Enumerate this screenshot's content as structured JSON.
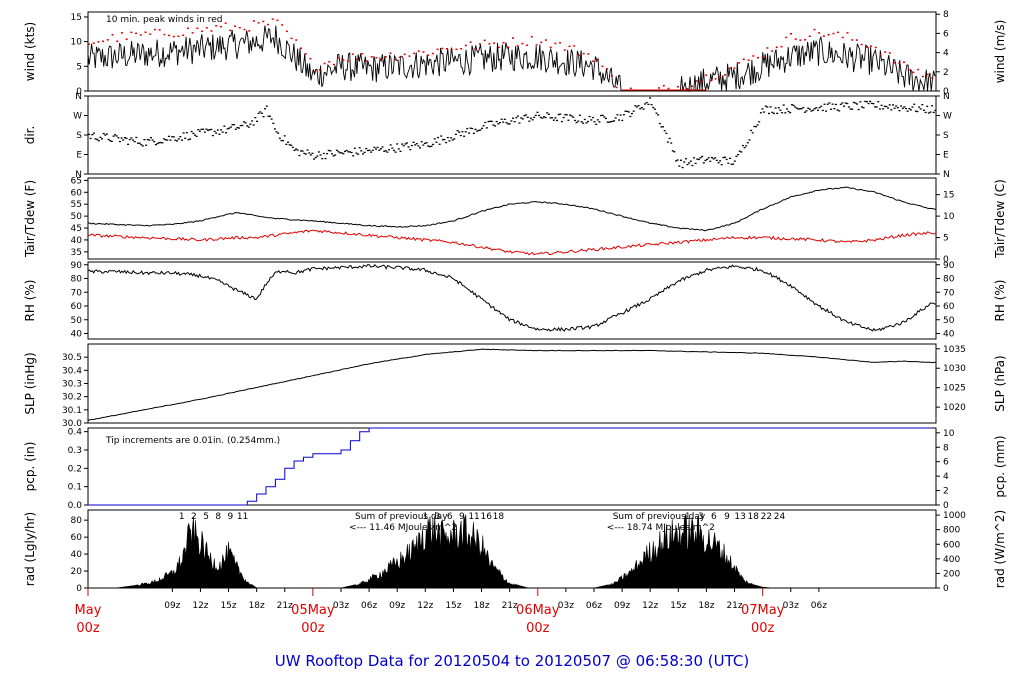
{
  "title": "UW Rooftop Data for 20120504  to  20120507 @ 06:58:30  (UTC)",
  "colors": {
    "red": "#e00000",
    "blue": "#0000d0",
    "purple": "#9900cc",
    "title": "#0000cc"
  },
  "x_axis": {
    "hour_ticks": [
      "09z",
      "12z",
      "15z",
      "18z",
      "21z",
      "03z",
      "06z",
      "09z",
      "12z",
      "15z",
      "18z",
      "21z",
      "03z",
      "06z",
      "09z",
      "12z",
      "15z",
      "18z",
      "21z",
      "03z",
      "06z"
    ],
    "day_labels": [
      {
        "line1": "May",
        "line2": "00z"
      },
      {
        "line1": "05May",
        "line2": "00z"
      },
      {
        "line1": "06May",
        "line2": "00z"
      },
      {
        "line1": "07May",
        "line2": "00z"
      }
    ]
  },
  "chart_data": [
    {
      "type": "line",
      "name": "wind",
      "ylabel": "wind (kts)",
      "ylabel_right": "wind (m/s)",
      "yticks": [
        0,
        5,
        10,
        15
      ],
      "yticks_right": [
        0,
        2,
        4,
        6,
        8
      ],
      "ylim": [
        0,
        16
      ],
      "annotation": "10 min. peak winds in red",
      "x_hours": [
        0,
        3,
        6,
        9,
        12,
        14,
        16,
        18,
        20,
        22,
        24,
        27,
        30,
        33,
        36,
        39,
        42,
        45,
        48,
        51,
        54,
        57,
        60,
        63,
        66,
        69,
        72,
        75,
        78,
        81,
        84,
        87,
        90
      ],
      "mean_wind_kts": [
        6.5,
        7,
        7.5,
        8,
        8.5,
        9,
        9.5,
        10,
        11,
        7,
        3,
        5,
        4.5,
        5,
        5.5,
        6,
        6.5,
        7,
        7,
        6,
        5,
        0,
        0,
        0,
        2,
        3,
        5,
        7,
        8,
        7,
        6,
        3,
        1.5
      ],
      "peak_wind_kts": [
        10,
        11,
        11.5,
        12,
        12.5,
        13,
        13,
        13.5,
        14,
        10,
        5,
        7,
        7,
        7.5,
        8,
        9,
        9.5,
        10,
        10.5,
        9,
        7,
        0,
        0,
        1,
        3,
        5,
        8,
        11,
        12,
        11,
        9,
        5,
        3
      ]
    },
    {
      "type": "scatter",
      "name": "dir",
      "ylabel": "dir.",
      "yticks": [
        "N",
        "E",
        "S",
        "W",
        "N"
      ]
    },
    {
      "type": "line",
      "name": "temperature",
      "ylabel": "Tair/Tdew (F)",
      "ylabel_right": "Tair/Tdew (C)",
      "yticks": [
        35,
        40,
        45,
        50,
        55,
        60,
        65
      ],
      "yticks_right": [
        0,
        5,
        10,
        15
      ],
      "ylim": [
        32,
        66
      ],
      "x_hours": [
        0,
        3,
        6,
        9,
        12,
        14,
        16,
        18,
        20,
        22,
        24,
        27,
        30,
        33,
        36,
        39,
        42,
        45,
        48,
        51,
        54,
        57,
        60,
        63,
        66,
        69,
        72,
        75,
        78,
        81,
        84,
        87,
        90
      ],
      "tair_f": [
        47,
        46.5,
        46,
        46.5,
        48,
        50,
        51.5,
        50,
        49,
        48.5,
        48,
        47,
        46,
        45.5,
        46,
        48,
        52,
        55,
        56,
        55,
        53,
        50,
        47,
        45,
        44,
        47,
        53,
        58,
        61,
        62,
        60,
        56,
        53
      ],
      "tdew_f": [
        42,
        41.5,
        41,
        40.5,
        40,
        40.5,
        41,
        41,
        42,
        43,
        44,
        43,
        42,
        41,
        40,
        39,
        37,
        35,
        34,
        35,
        36,
        37,
        38,
        39,
        40,
        41,
        41,
        40.5,
        40,
        39,
        40,
        42,
        43
      ]
    },
    {
      "type": "line",
      "name": "rh",
      "ylabel": "RH (%)",
      "ylabel_right": "RH (%)",
      "yticks": [
        40,
        50,
        60,
        70,
        80,
        90
      ],
      "yticks_right": [
        40,
        50,
        60,
        70,
        80,
        90
      ],
      "ylim": [
        36,
        92
      ],
      "x_hours": [
        0,
        3,
        6,
        9,
        12,
        14,
        16,
        18,
        19,
        20,
        21,
        22,
        24,
        27,
        30,
        33,
        36,
        39,
        42,
        45,
        48,
        51,
        54,
        57,
        60,
        63,
        66,
        69,
        72,
        75,
        78,
        81,
        84,
        87,
        90
      ],
      "rh_pct": [
        85,
        85,
        84,
        84,
        82,
        78,
        71,
        65,
        76,
        84,
        86,
        84,
        87,
        88,
        89,
        88,
        86,
        80,
        65,
        50,
        43,
        43,
        45,
        55,
        65,
        78,
        86,
        89,
        86,
        75,
        60,
        48,
        42,
        48,
        62
      ]
    },
    {
      "type": "line",
      "name": "slp",
      "ylabel": "SLP (inHg)",
      "ylabel_right": "SLP (hPa)",
      "yticks": [
        30.0,
        30.1,
        30.2,
        30.3,
        30.4,
        30.5
      ],
      "yticks_right": [
        1020,
        1025,
        1030,
        1035
      ],
      "ylim": [
        30.0,
        30.6
      ],
      "x_hours": [
        0,
        6,
        12,
        18,
        24,
        30,
        36,
        42,
        48,
        54,
        60,
        66,
        72,
        78,
        84,
        87,
        90
      ],
      "slp_inhg": [
        30.02,
        30.1,
        30.18,
        30.27,
        30.36,
        30.45,
        30.52,
        30.56,
        30.55,
        30.55,
        30.55,
        30.54,
        30.53,
        30.5,
        30.46,
        30.47,
        30.46
      ]
    },
    {
      "type": "line",
      "name": "pcp",
      "ylabel": "pcp. (in)",
      "ylabel_right": "pcp. (mm)",
      "yticks": [
        0.0,
        0.1,
        0.2,
        0.3,
        0.4
      ],
      "yticks_right": [
        0,
        2,
        4,
        6,
        8,
        10
      ],
      "ylim": [
        0,
        0.42
      ],
      "annotation": "Tip increments are 0.01in. (0.254mm.)",
      "x_hours": [
        0,
        16,
        17,
        18,
        19,
        20,
        21,
        22,
        23,
        24,
        27,
        28,
        29,
        30,
        90
      ],
      "pcp_in": [
        0,
        0,
        0.02,
        0.06,
        0.1,
        0.14,
        0.2,
        0.24,
        0.26,
        0.28,
        0.3,
        0.35,
        0.4,
        0.42,
        0.42
      ]
    },
    {
      "type": "area",
      "name": "radiation",
      "ylabel": "rad (Lgly/hr)",
      "ylabel_right": "rad (W/m^2)",
      "yticks": [
        0,
        20,
        40,
        60,
        80
      ],
      "yticks_right": [
        0,
        200,
        400,
        600,
        800,
        1000
      ],
      "ylim": [
        0,
        92
      ],
      "annotations": [
        {
          "line1": "Sum of previous day",
          "line2": "<--- 11.46 MJoules/m^2"
        },
        {
          "line1": "Sum of previous day",
          "line2": "<--- 18.74 MJoules/m^2"
        }
      ],
      "hour_marks": [
        [
          "1",
          "2",
          "5",
          "8",
          "9",
          "11"
        ],
        [
          "1",
          "3",
          "6",
          "9",
          "11",
          "16",
          "18"
        ],
        [
          "1",
          "3",
          "6",
          "9",
          "13",
          "18",
          "22",
          "24"
        ]
      ],
      "x_hours": [
        3,
        5,
        7,
        9,
        10,
        11,
        12,
        13,
        14,
        15,
        16,
        17,
        18,
        20,
        23,
        27,
        29,
        31,
        33,
        35,
        36,
        37,
        38,
        39,
        40,
        41,
        42,
        43,
        45,
        47,
        51,
        54,
        56,
        58,
        60,
        62,
        63,
        64,
        65,
        66,
        67,
        68,
        69,
        70,
        71,
        72,
        73
      ],
      "rad_lgly": [
        0,
        3,
        8,
        20,
        38,
        78,
        62,
        40,
        30,
        48,
        25,
        8,
        0,
        0,
        0,
        0,
        5,
        18,
        35,
        55,
        80,
        78,
        68,
        72,
        78,
        70,
        58,
        32,
        6,
        0,
        0,
        0,
        5,
        22,
        50,
        70,
        75,
        78,
        74,
        68,
        58,
        45,
        28,
        10,
        4,
        1,
        0
      ]
    }
  ]
}
